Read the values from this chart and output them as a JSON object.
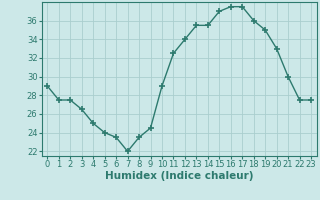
{
  "x": [
    0,
    1,
    2,
    3,
    4,
    5,
    6,
    7,
    8,
    9,
    10,
    11,
    12,
    13,
    14,
    15,
    16,
    17,
    18,
    19,
    20,
    21,
    22,
    23
  ],
  "y": [
    29,
    27.5,
    27.5,
    26.5,
    25,
    24,
    23.5,
    22,
    23.5,
    24.5,
    29,
    32.5,
    34,
    35.5,
    35.5,
    37,
    37.5,
    37.5,
    36,
    35,
    33,
    30,
    27.5,
    27.5
  ],
  "line_color": "#2d7a6e",
  "marker": "+",
  "marker_size": 4,
  "marker_lw": 1.2,
  "bg_color": "#cce8e8",
  "grid_color": "#aacece",
  "xlabel": "Humidex (Indice chaleur)",
  "ylim": [
    21.5,
    38.0
  ],
  "xlim": [
    -0.5,
    23.5
  ],
  "yticks": [
    22,
    24,
    26,
    28,
    30,
    32,
    34,
    36
  ],
  "xticks": [
    0,
    1,
    2,
    3,
    4,
    5,
    6,
    7,
    8,
    9,
    10,
    11,
    12,
    13,
    14,
    15,
    16,
    17,
    18,
    19,
    20,
    21,
    22,
    23
  ],
  "tick_color": "#2d7a6e",
  "label_fontsize": 7.5,
  "tick_fontsize": 6.0,
  "linewidth": 1.0
}
